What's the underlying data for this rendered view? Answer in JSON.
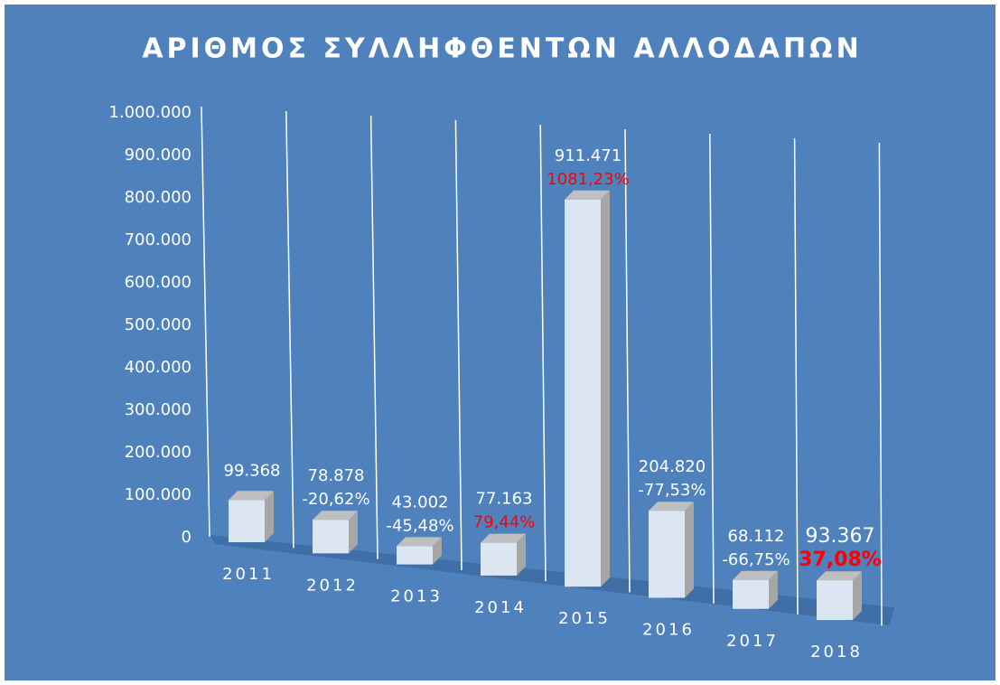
{
  "chart_data": {
    "type": "bar3d",
    "title": "ΑΡΙΘΜΟΣ ΣΥΛΛΗΦΘΕΝΤΩΝ ΑΛΛΟΔΑΠΩΝ",
    "categories": [
      "2011",
      "2012",
      "2013",
      "2014",
      "2015",
      "2016",
      "2017",
      "2018"
    ],
    "values": [
      99368,
      78878,
      43002,
      77163,
      911471,
      204820,
      68112,
      93367
    ],
    "value_labels": [
      "99.368",
      "78.878",
      "43.002",
      "77.163",
      "911.471",
      "204.820",
      "68.112",
      "93.367"
    ],
    "changes": {
      "values": [
        null,
        -20.62,
        -45.48,
        79.44,
        1081.23,
        -77.53,
        -66.75,
        37.08
      ],
      "value_labels": [
        null,
        "-20,62%",
        "-45,48%",
        "79,44%",
        "1081,23%",
        "-77,53%",
        "-66,75%",
        "37,08%"
      ],
      "positive_color": "#ff0000",
      "negative_color": "#ffffff"
    },
    "color": "#dce6f2",
    "ylim": [
      0,
      1000000
    ],
    "yticks": [
      0,
      {
        "value": 100000,
        "label": "100.000"
      },
      {
        "value": 200000,
        "label": "200.000"
      },
      {
        "value": 300000,
        "label": "300.000"
      },
      {
        "value": 400000,
        "label": "400.000"
      },
      {
        "value": 500000,
        "label": "500.000"
      },
      {
        "value": 600000,
        "label": "600.000"
      },
      {
        "value": 700000,
        "label": "700.000"
      },
      {
        "value": 800000,
        "label": "800.000"
      },
      {
        "value": 900000,
        "label": "900.000"
      },
      {
        "value": 1000000,
        "label": "1.000.000"
      }
    ]
  }
}
